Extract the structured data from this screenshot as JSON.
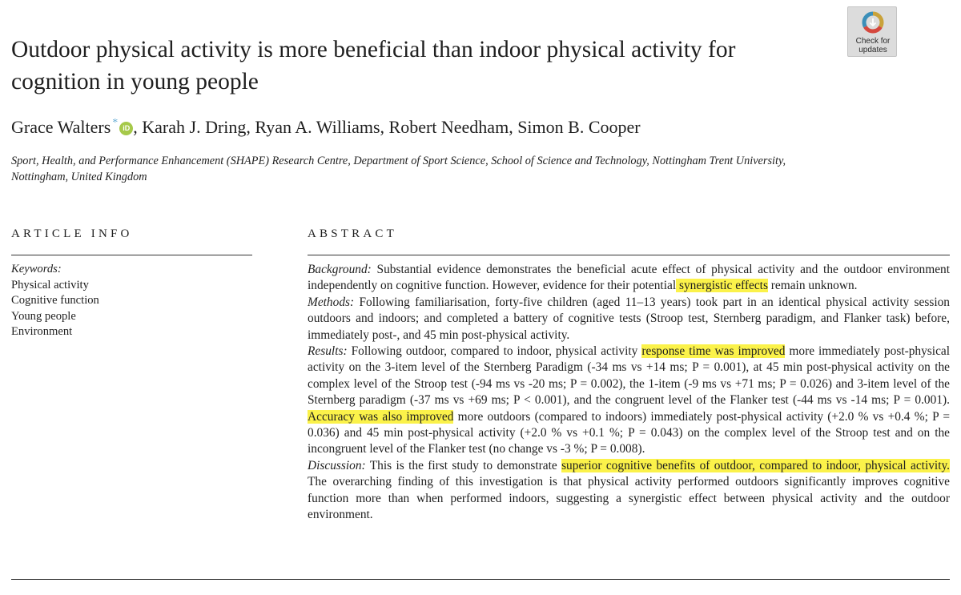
{
  "title": "Outdoor physical activity is more beneficial than indoor physical activity for cognition in young people",
  "badge": {
    "icon": "check-for-updates-icon",
    "text": "Check for updates"
  },
  "authors": [
    "Grace Walters",
    "Karah J. Dring",
    "Ryan A. Williams",
    "Robert Needham",
    "Simon B. Cooper"
  ],
  "corresponding_mark": "*",
  "orcid_label": "iD",
  "affiliation": "Sport, Health, and Performance Enhancement (SHAPE) Research Centre, Department of Sport Science, School of Science and Technology, Nottingham Trent University, Nottingham, United Kingdom",
  "article_info": {
    "heading": "ARTICLE INFO",
    "keywords_label": "Keywords:",
    "keywords": [
      "Physical activity",
      "Cognitive function",
      "Young people",
      "Environment"
    ]
  },
  "abstract": {
    "heading": "ABSTRACT",
    "background_label": "Background:",
    "background_a": " Substantial evidence demonstrates the beneficial acute effect of physical activity and the outdoor environment independently on cognitive function. However, evidence for their potential",
    "background_hl": " synergistic effects",
    "background_b": " remain unknown.",
    "methods_label": "Methods:",
    "methods": " Following familiarisation, forty-five children (aged 11–13 years) took part in an identical physical activity session outdoors and indoors; and completed a battery of cognitive tests (Stroop test, Sternberg paradigm, and Flanker task) before, immediately post-, and 45 min post-physical activity.",
    "results_label": "Results:",
    "results_a": " Following outdoor, compared to indoor, physical activity ",
    "results_hl1": "response time was improved",
    "results_b": " more immediately post-physical activity on the 3-item level of the Sternberg Paradigm (-34 ms vs +14 ms; P = 0.001), at 45 min post-physical activity on the complex level of the Stroop test (-94 ms vs -20 ms; P = 0.002), the 1-item (-9 ms vs +71 ms; P = 0.026) and 3-item level of the Sternberg paradigm (-37 ms vs +69 ms; P < 0.001), and the congruent level of the Flanker test (-44 ms vs -14 ms; P = 0.001).",
    "results_hl2": " Accuracy was also improved",
    "results_c": " more outdoors (compared to indoors) immediately post-physical activity (+2.0 % vs +0.4 %; P = 0.036) and 45 min post-physical activity (+2.0 % vs +0.1 %; P = 0.043) on the complex level of the Stroop test and on the incongruent level of the Flanker test (no change vs -3 %; P = 0.008).",
    "discussion_label": "Discussion:",
    "discussion_a": " This is the first study to demonstrate ",
    "discussion_hl": "superior cognitive benefits of outdoor, compared to indoor, physical activity.",
    "discussion_b": " The overarching finding of this investigation is that physical activity performed outdoors significantly improves cognitive function more than when performed indoors, suggesting a synergistic effect between physical activity and the outdoor environment."
  },
  "colors": {
    "highlight": "#fbf24a",
    "orcid": "#a6c94a",
    "badge_bg": "#dcdcdc"
  }
}
